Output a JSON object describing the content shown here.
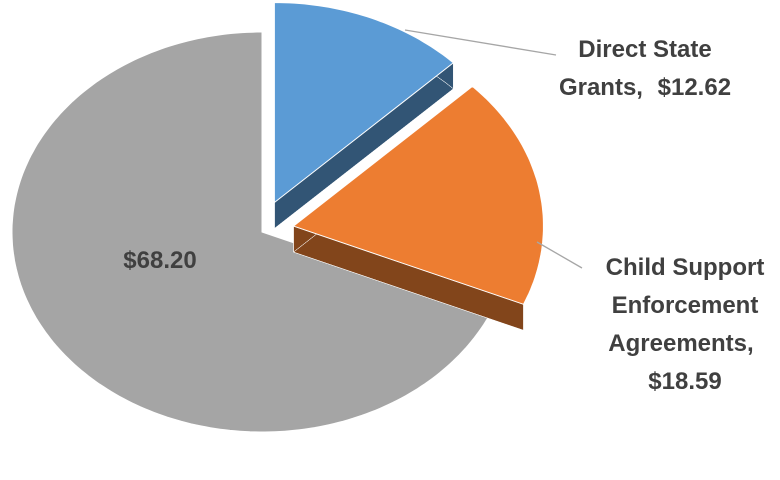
{
  "chart_data": {
    "type": "pie",
    "categories": [
      "Direct State Grants",
      "Child Support Enforcement Agreements",
      null
    ],
    "values": [
      12.62,
      18.59,
      68.2
    ],
    "value_labels": [
      "$12.62",
      "$18.59",
      "$68.20"
    ],
    "colors": [
      "#5b9bd5",
      "#ed7d31",
      "#a5a5a5"
    ],
    "exploded": [
      true,
      true,
      false
    ]
  }
}
